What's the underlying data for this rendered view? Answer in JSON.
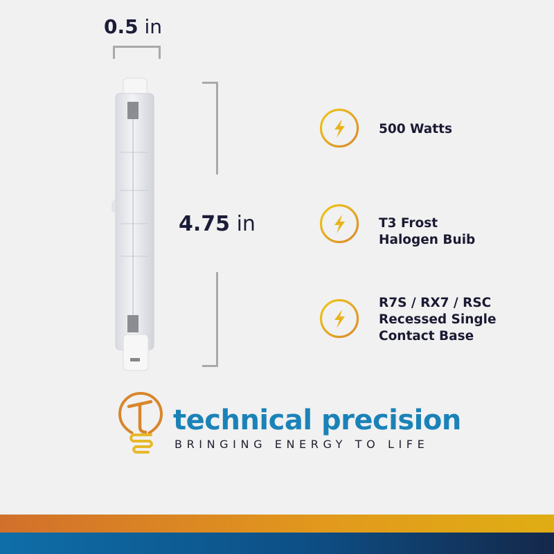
{
  "dimensions": {
    "width": {
      "value": "0.5",
      "unit": "in"
    },
    "length": {
      "value": "4.75",
      "unit": "in"
    }
  },
  "features": [
    {
      "icon": "lightning-bolt-icon",
      "lines": [
        "500 Watts"
      ]
    },
    {
      "icon": "lightning-bolt-icon",
      "lines": [
        "T3 Frost",
        "Halogen Buib"
      ]
    },
    {
      "icon": "lightning-bolt-icon",
      "lines": [
        "R7S / RX7 / RSC",
        "Recessed Single",
        "Contact Base"
      ]
    }
  ],
  "brand": {
    "name": "technical precision",
    "tagline": "BRINGING ENERGY TO LIFE"
  },
  "colors": {
    "text_dark": "#1a1a33",
    "brand_blue": "#1b82b8",
    "icon_gold": "#e8b41a",
    "band_orange": "#d2702b",
    "band_blue": "#0f6ea8"
  }
}
